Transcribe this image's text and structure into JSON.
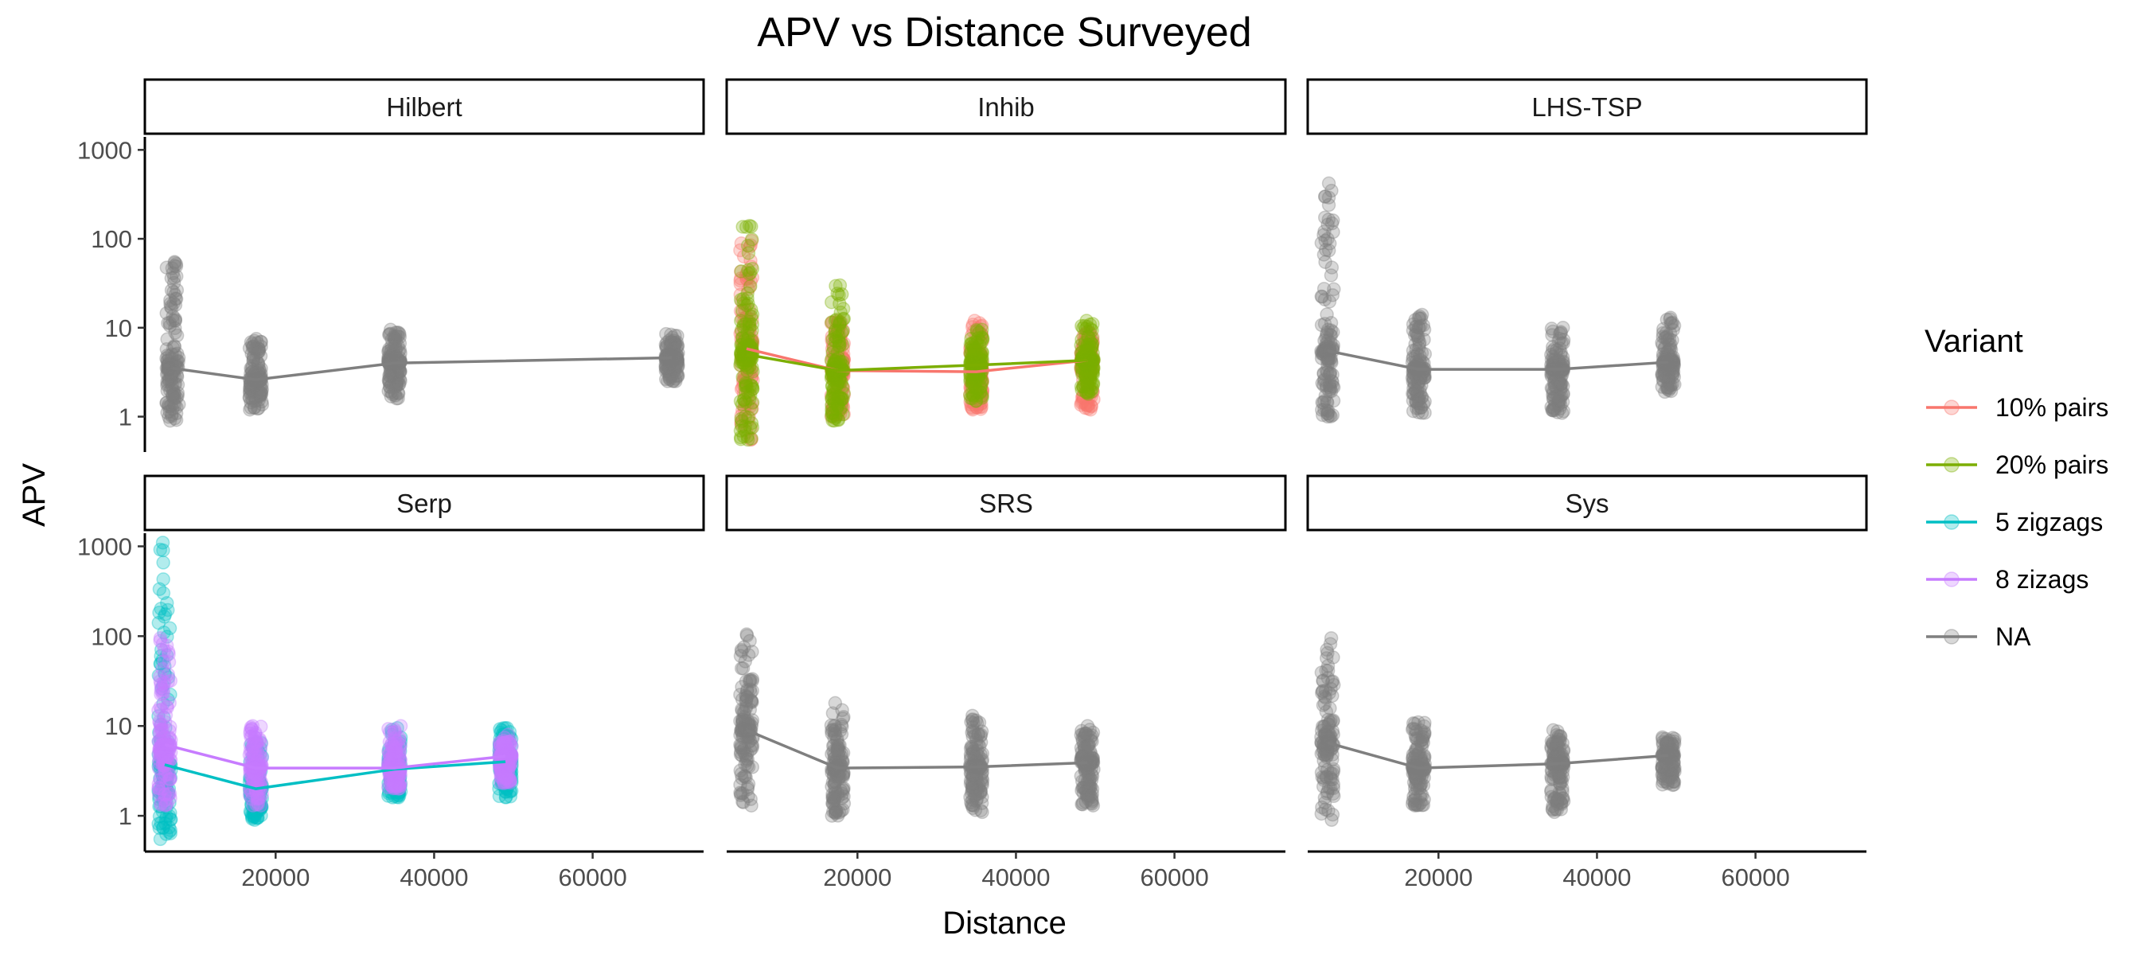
{
  "chart_data": {
    "type": "scatter",
    "title": "APV vs Distance Surveyed",
    "xlabel": "Distance",
    "ylabel": "APV",
    "xlim": [
      3500,
      74000
    ],
    "ylim": [
      0.4,
      1400
    ],
    "y_scale": "log10",
    "x_ticks": [
      20000,
      40000,
      60000
    ],
    "x_tick_labels": [
      "20000",
      "40000",
      "60000"
    ],
    "y_ticks": [
      1,
      10,
      100,
      1000
    ],
    "y_tick_labels": [
      "1",
      "10",
      "100",
      "1000"
    ],
    "legend": {
      "title": "Variant",
      "position": "right",
      "entries": [
        {
          "label": "10% pairs",
          "color": "#F8766D"
        },
        {
          "label": "20% pairs",
          "color": "#7CAE00"
        },
        {
          "label": "5 zigzags",
          "color": "#00BFC4"
        },
        {
          "label": "8 zizags",
          "color": "#C77CFF"
        },
        {
          "label": "NA",
          "color": "#7F7F7F"
        }
      ]
    },
    "panels": [
      {
        "name": "Hilbert",
        "series": [
          {
            "variant": "NA",
            "color": "#7F7F7F",
            "x": [
              7000,
              17500,
              35000,
              70000
            ],
            "line_y": [
              3.5,
              2.6,
              4.0,
              4.6
            ],
            "range_min": [
              0.9,
              1.2,
              1.6,
              2.5
            ],
            "range_max": [
              55,
              7.5,
              9.5,
              8.5
            ]
          }
        ]
      },
      {
        "name": "Inhib",
        "series": [
          {
            "variant": "10% pairs",
            "color": "#F8766D",
            "x": [
              6000,
              17500,
              35000,
              49000
            ],
            "line_y": [
              5.8,
              3.3,
              3.2,
              4.3
            ],
            "range_min": [
              0.55,
              1.0,
              1.2,
              1.2
            ],
            "range_max": [
              95,
              12,
              12,
              9
            ]
          },
          {
            "variant": "20% pairs",
            "color": "#7CAE00",
            "x": [
              6000,
              17500,
              35000,
              49000
            ],
            "line_y": [
              5.0,
              3.3,
              3.8,
              4.3
            ],
            "range_min": [
              0.55,
              0.9,
              1.5,
              1.8
            ],
            "range_max": [
              140,
              30,
              9.5,
              12
            ]
          }
        ]
      },
      {
        "name": "LHS-TSP",
        "series": [
          {
            "variant": "NA",
            "color": "#7F7F7F",
            "x": [
              6000,
              17500,
              35000,
              49000
            ],
            "line_y": [
              5.5,
              3.4,
              3.4,
              4.1
            ],
            "range_min": [
              1.0,
              1.1,
              1.1,
              1.9
            ],
            "range_max": [
              420,
              14,
              10,
              13
            ]
          }
        ]
      },
      {
        "name": "Serp",
        "series": [
          {
            "variant": "5 zigzags",
            "color": "#00BFC4",
            "x": [
              6000,
              17500,
              35000,
              49000
            ],
            "line_y": [
              3.7,
              2.0,
              3.3,
              4.0
            ],
            "range_min": [
              0.55,
              0.9,
              1.6,
              1.6
            ],
            "range_max": [
              1100,
              6.5,
              9.5,
              9.5
            ]
          },
          {
            "variant": "8 zizags",
            "color": "#C77CFF",
            "x": [
              6000,
              17500,
              35000,
              49000
            ],
            "line_y": [
              6.2,
              3.4,
              3.4,
              4.6
            ],
            "range_min": [
              1.3,
              1.3,
              2.0,
              2.3
            ],
            "range_max": [
              95,
              10,
              10,
              8
            ]
          }
        ]
      },
      {
        "name": "SRS",
        "series": [
          {
            "variant": "NA",
            "color": "#7F7F7F",
            "x": [
              6000,
              17500,
              35000,
              49000
            ],
            "line_y": [
              9.0,
              3.4,
              3.5,
              3.9
            ],
            "range_min": [
              1.3,
              1.0,
              1.1,
              1.3
            ],
            "range_max": [
              105,
              18,
              13,
              10
            ]
          }
        ]
      },
      {
        "name": "Sys",
        "series": [
          {
            "variant": "NA",
            "color": "#7F7F7F",
            "x": [
              6000,
              17500,
              35000,
              49000
            ],
            "line_y": [
              6.5,
              3.4,
              3.8,
              4.7
            ],
            "range_min": [
              0.9,
              1.3,
              1.1,
              2.2
            ],
            "range_max": [
              95,
              11,
              9,
              7.5
            ]
          }
        ]
      }
    ]
  }
}
